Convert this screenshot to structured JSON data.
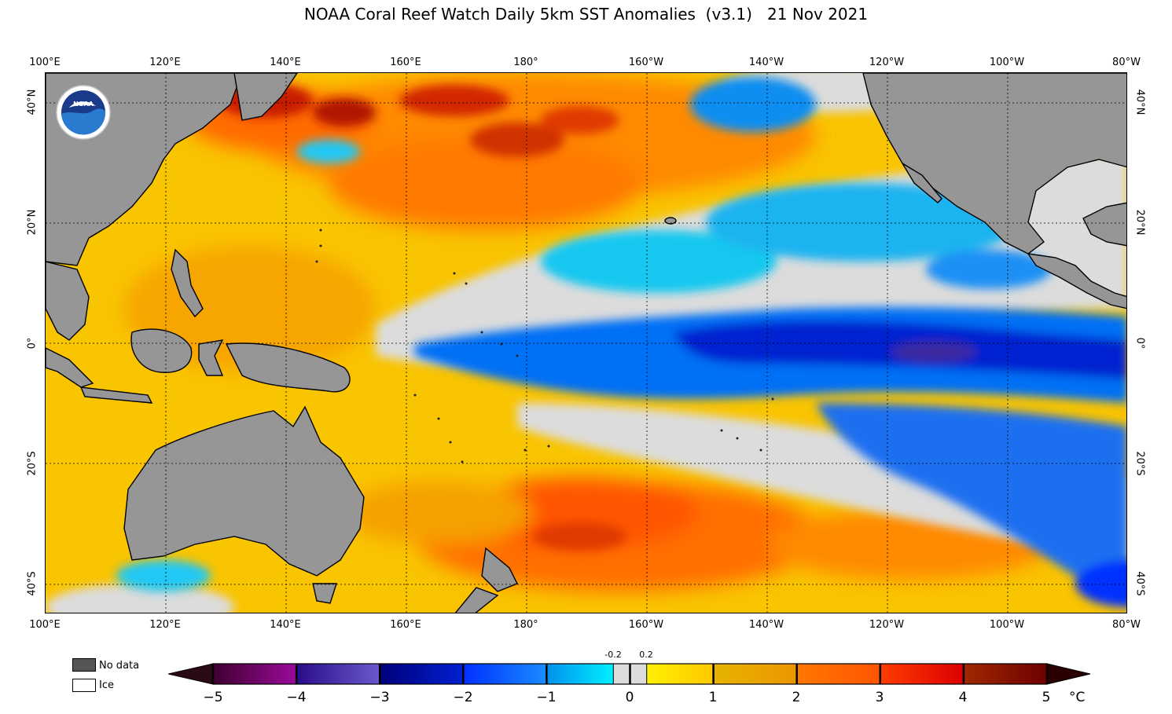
{
  "title": "NOAA Coral Reef Watch Daily 5km SST Anomalies  (v3.1)   21 Nov 2021",
  "map": {
    "projection": "equirectangular",
    "lon_range": [
      "100°E",
      "80°W"
    ],
    "lat_range": [
      "45°S",
      "45°N"
    ],
    "lon_labels": [
      "100°E",
      "120°E",
      "140°E",
      "160°E",
      "180°",
      "160°W",
      "140°W",
      "120°W",
      "100°W",
      "80°W"
    ],
    "lat_labels": [
      "40°N",
      "20°N",
      "0°",
      "20°S",
      "40°S"
    ],
    "gridlines": "dotted",
    "land_color": "#969696",
    "logo": "noaa-logo"
  },
  "legend": {
    "no_data": {
      "label": "No data",
      "color": "#555555"
    },
    "ice": {
      "label": "Ice",
      "color": "#ffffff"
    }
  },
  "colorbar": {
    "unit": "°C",
    "tick_labels": [
      "−5",
      "−4",
      "−3",
      "−2",
      "−1",
      "0",
      "1",
      "2",
      "3",
      "4",
      "5"
    ],
    "small_labels": [
      "-0.2",
      "0.2"
    ],
    "min": -5,
    "max": 5,
    "extend": "both",
    "low_extension_color": "#2a0a14",
    "high_extension_color": "#2a0000",
    "segments": [
      {
        "from": -5,
        "to": -4,
        "start": "#3f0030",
        "end": "#9a0a9a"
      },
      {
        "from": -4,
        "to": -3,
        "start": "#2a0b8a",
        "end": "#6a5acd"
      },
      {
        "from": -3,
        "to": -2,
        "start": "#00007a",
        "end": "#0020d0"
      },
      {
        "from": -2,
        "to": -1,
        "start": "#0030ff",
        "end": "#1a8cff"
      },
      {
        "from": -1,
        "to": -0.2,
        "start": "#0090ee",
        "end": "#00f0ff"
      },
      {
        "from": -0.2,
        "to": 0.2,
        "start": "#dcdcdc",
        "end": "#dcdcdc"
      },
      {
        "from": 0.2,
        "to": 1,
        "start": "#fff000",
        "end": "#ffc800"
      },
      {
        "from": 1,
        "to": 2,
        "start": "#e6b400",
        "end": "#ec9600"
      },
      {
        "from": 2,
        "to": 3,
        "start": "#ff7800",
        "end": "#ff5500"
      },
      {
        "from": 3,
        "to": 4,
        "start": "#ff3c00",
        "end": "#dc0000"
      },
      {
        "from": 4,
        "to": 5,
        "start": "#a02800",
        "end": "#6e0000"
      }
    ]
  }
}
